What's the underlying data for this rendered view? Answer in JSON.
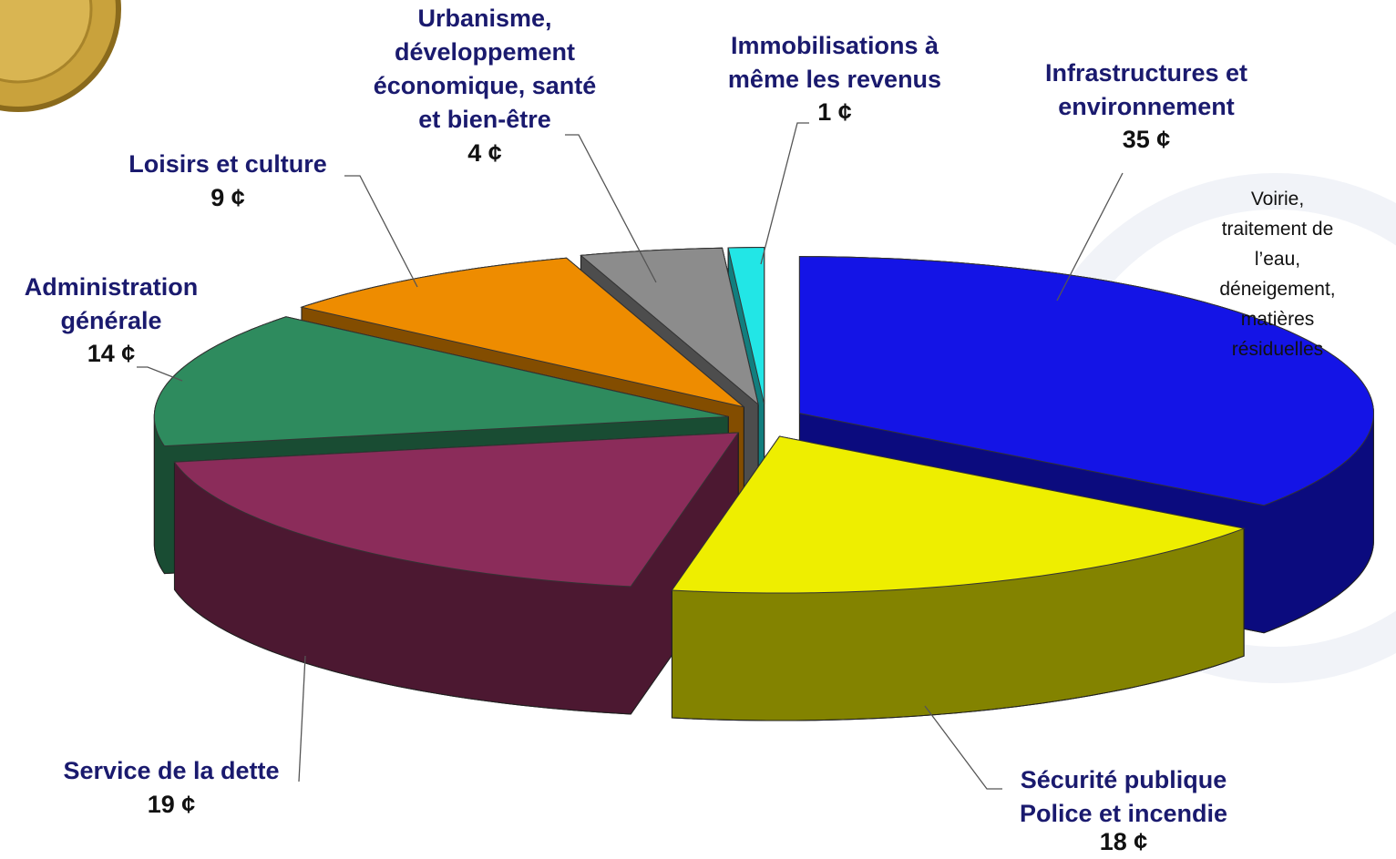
{
  "chart_data": {
    "type": "pie",
    "categories": [
      "Infrastructures et\nenvironnement",
      "Sécurité publique\nPolice et incendie",
      "Service de la dette",
      "Administration\ngénérale",
      "Loisirs et culture",
      "Urbanisme,\ndéveloppement\néconomique, santé\net bien-être",
      "Immobilisations à\nmême les revenus"
    ],
    "values": [
      35,
      18,
      19,
      14,
      9,
      4,
      1
    ],
    "value_labels": [
      "35 ¢",
      "18 ¢",
      "19 ¢",
      "14 ¢",
      "9 ¢",
      "4 ¢",
      "1 ¢"
    ],
    "colors": [
      "#1414e6",
      "#eeee00",
      "#8b2c5a",
      "#2e8b5e",
      "#ee8c00",
      "#8c8c8c",
      "#22e6e6"
    ],
    "annotation": "Voirie, traitement de\nl’eau, déneigement,\nmatières résiduelles"
  }
}
